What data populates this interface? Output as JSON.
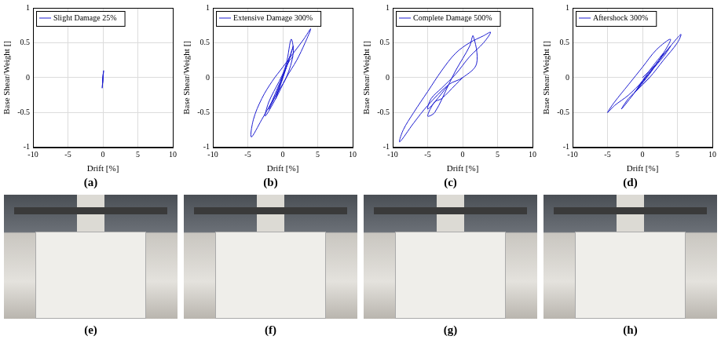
{
  "chart_data": [
    {
      "type": "line",
      "panel_label": "(a)",
      "x_label": "Drift [%]",
      "y_label": "Base Shear/Weight []",
      "xlim": [
        -10,
        10
      ],
      "xticks": [
        -10,
        -5,
        0,
        5,
        10
      ],
      "ylim": [
        -1,
        1
      ],
      "yticks": [
        -1,
        -0.5,
        0,
        0.5,
        1
      ],
      "grid": true,
      "legend": "upper left",
      "x": [
        0,
        0.1,
        -0.1,
        0.05,
        -0.05,
        0
      ],
      "series": [
        {
          "name": "Slight Damage 25%",
          "color": "#1c1cd0",
          "marker": "none",
          "line_style": "solid",
          "values": [
            0,
            0.1,
            -0.15,
            0.06,
            -0.08,
            0
          ]
        }
      ]
    },
    {
      "type": "line",
      "panel_label": "(b)",
      "x_label": "Drift [%]",
      "y_label": "Base Shear/Weight []",
      "xlim": [
        -10,
        10
      ],
      "xticks": [
        -10,
        -5,
        0,
        5,
        10
      ],
      "ylim": [
        -1,
        1
      ],
      "yticks": [
        -1,
        -0.5,
        0,
        0.5,
        1
      ],
      "grid": true,
      "legend": "upper left",
      "x": [
        0,
        1,
        0.3,
        -1,
        -0.3,
        1.5,
        0.5,
        -2,
        -1,
        0.5,
        1.2,
        1.5,
        0.5,
        -1,
        -3,
        -4.5,
        -4.2,
        -3,
        -1.5,
        0,
        1.5,
        3,
        4,
        3.2,
        2,
        0.5,
        -1,
        -2.5,
        -2,
        -0.5,
        1,
        1.5
      ],
      "series": [
        {
          "name": "Extensive Damage 300%",
          "color": "#1c1cd0",
          "marker": "none",
          "line_style": "solid",
          "values": [
            0,
            0.3,
            0.1,
            -0.3,
            -0.1,
            0.45,
            0.15,
            -0.45,
            -0.25,
            0.2,
            0.55,
            0.35,
            0,
            -0.25,
            -0.6,
            -0.85,
            -0.6,
            -0.3,
            -0.05,
            0.15,
            0.35,
            0.55,
            0.7,
            0.5,
            0.25,
            0,
            -0.3,
            -0.55,
            -0.35,
            -0.05,
            0.25,
            0.3
          ]
        }
      ]
    },
    {
      "type": "line",
      "panel_label": "(c)",
      "x_label": "Drift [%]",
      "y_label": "Base Shear/Weight []",
      "xlim": [
        -10,
        10
      ],
      "xticks": [
        -10,
        -5,
        0,
        5,
        10
      ],
      "ylim": [
        -1,
        1
      ],
      "yticks": [
        -1,
        -0.5,
        0,
        0.5,
        1
      ],
      "grid": true,
      "legend": "upper left",
      "x": [
        0,
        -1,
        -3,
        -4,
        -5,
        -4,
        -2,
        -1,
        1,
        1.5,
        2,
        0,
        -2,
        -5,
        -7,
        -9,
        -8.5,
        -7,
        -5,
        -3,
        -1,
        1,
        3,
        4,
        3,
        1,
        -1,
        -3,
        -4.5,
        -5,
        -4,
        -2
      ],
      "series": [
        {
          "name": "Complete Damage 500%",
          "color": "#1c1cd0",
          "marker": "none",
          "line_style": "solid",
          "values": [
            0,
            -0.1,
            -0.3,
            -0.35,
            -0.55,
            -0.5,
            -0.1,
            0.1,
            0.45,
            0.6,
            0.2,
            0,
            -0.1,
            -0.4,
            -0.65,
            -0.92,
            -0.75,
            -0.5,
            -0.2,
            0.1,
            0.35,
            0.5,
            0.6,
            0.65,
            0.5,
            0.3,
            0.05,
            -0.15,
            -0.3,
            -0.45,
            -0.35,
            -0.1
          ]
        }
      ]
    },
    {
      "type": "line",
      "panel_label": "(d)",
      "x_label": "Drift [%]",
      "y_label": "Base Shear/Weight []",
      "xlim": [
        -10,
        10
      ],
      "xticks": [
        -10,
        -5,
        0,
        5,
        10
      ],
      "ylim": [
        -1,
        1
      ],
      "yticks": [
        -1,
        -0.5,
        0,
        0.5,
        1
      ],
      "grid": true,
      "legend": "upper left",
      "x": [
        0,
        2,
        3,
        1,
        -1,
        0,
        3,
        4,
        2,
        -1,
        -3,
        -2,
        1,
        3,
        5,
        5.5,
        4,
        2,
        0,
        -2,
        -4,
        -5,
        -4,
        -2,
        0,
        2,
        4,
        3,
        1,
        -1,
        0,
        1
      ],
      "series": [
        {
          "name": "Aftershock 300%",
          "color": "#1c1cd0",
          "marker": "none",
          "line_style": "solid",
          "values": [
            0,
            0.2,
            0.35,
            0.1,
            -0.2,
            -0.05,
            0.3,
            0.45,
            0.2,
            -0.2,
            -0.45,
            -0.3,
            0,
            0.25,
            0.5,
            0.62,
            0.45,
            0.2,
            -0.05,
            -0.25,
            -0.4,
            -0.5,
            -0.35,
            -0.1,
            0.15,
            0.4,
            0.55,
            0.35,
            0.05,
            -0.2,
            -0.1,
            0
          ]
        }
      ]
    }
  ],
  "photos": [
    {
      "label": "(e)"
    },
    {
      "label": "(f)"
    },
    {
      "label": "(g)"
    },
    {
      "label": "(h)"
    }
  ]
}
